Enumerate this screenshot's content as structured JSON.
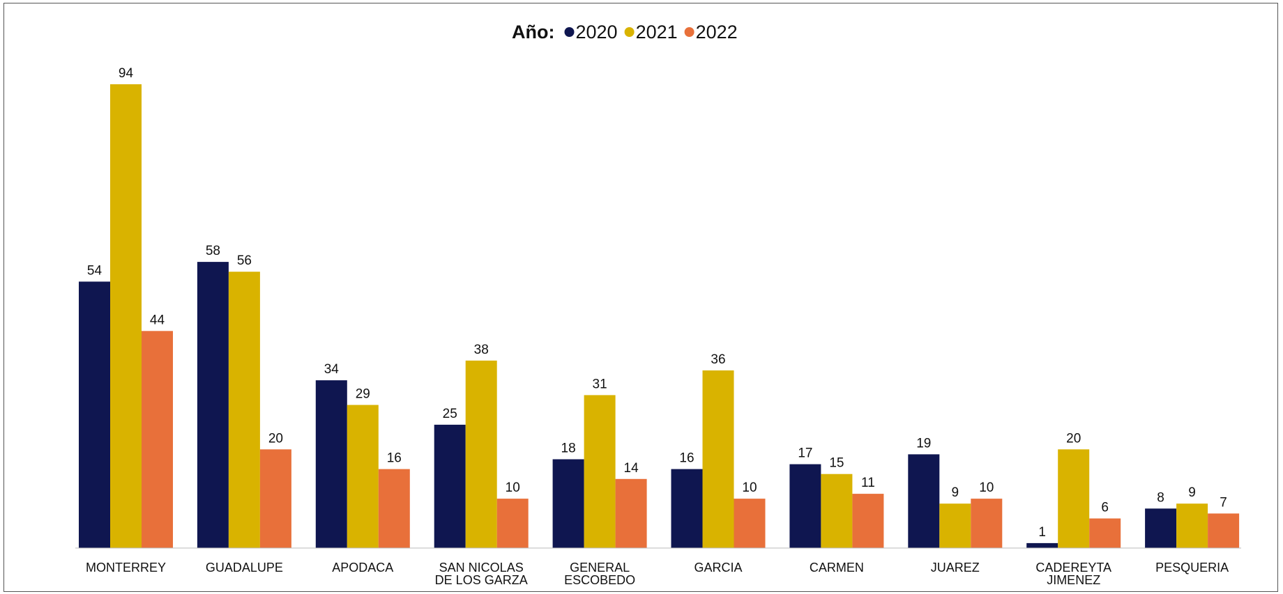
{
  "chart_data": {
    "type": "bar",
    "legend_title": "Año:",
    "legend_position": "top-center",
    "grid": false,
    "categories": [
      [
        "MONTERREY"
      ],
      [
        "GUADALUPE"
      ],
      [
        "APODACA"
      ],
      [
        "SAN NICOLAS",
        "DE LOS GARZA"
      ],
      [
        "GENERAL",
        "ESCOBEDO"
      ],
      [
        "GARCIA"
      ],
      [
        "CARMEN"
      ],
      [
        "JUAREZ"
      ],
      [
        "CADEREYTA",
        "JIMENEZ"
      ],
      [
        "PESQUERIA"
      ]
    ],
    "series": [
      {
        "name": "2020",
        "color": "#0f1650",
        "values": [
          54,
          58,
          34,
          25,
          18,
          16,
          17,
          19,
          1,
          8
        ]
      },
      {
        "name": "2021",
        "color": "#d9b300",
        "values": [
          94,
          56,
          29,
          38,
          31,
          36,
          15,
          9,
          20,
          9
        ]
      },
      {
        "name": "2022",
        "color": "#e8703a",
        "values": [
          44,
          20,
          16,
          10,
          14,
          10,
          11,
          10,
          6,
          7
        ]
      }
    ],
    "ylim": [
      0,
      94
    ]
  }
}
